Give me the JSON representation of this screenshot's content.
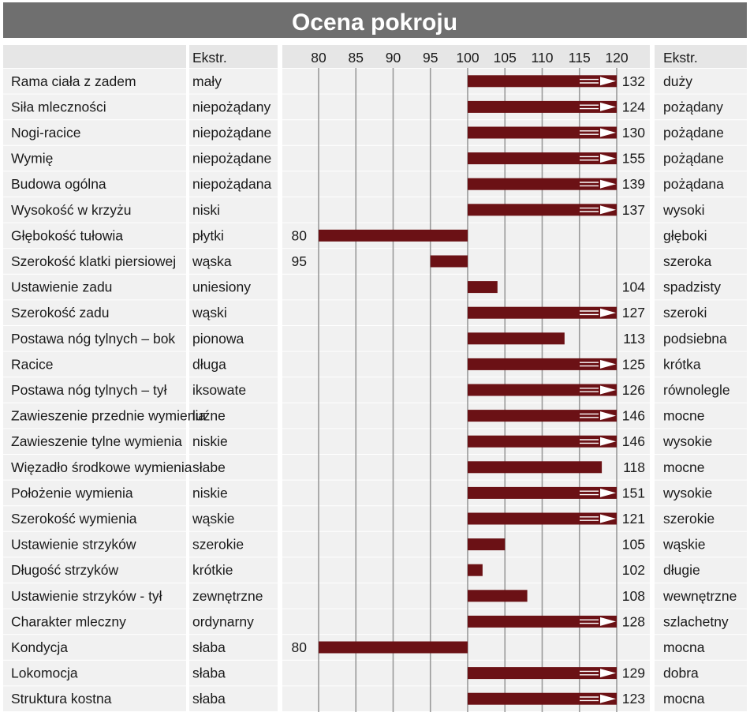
{
  "title": "Ocena pokroju",
  "header": {
    "left_extreme": "Ekstr.",
    "right_extreme": "Ekstr."
  },
  "colors": {
    "title_bg": "#6f6f6f",
    "bar": "#6b1115",
    "grid": "#9a9a9a",
    "cell_bg": "#f1f1f1",
    "header_bg": "#e6e6e6"
  },
  "chart_data": {
    "type": "bar",
    "orientation": "horizontal",
    "baseline": 100,
    "xlim": [
      80,
      120
    ],
    "ticks": [
      80,
      85,
      90,
      95,
      100,
      105,
      110,
      115,
      120
    ],
    "rows": [
      {
        "trait": "Rama ciała z zadem",
        "low": "mały",
        "high": "duży",
        "value": 132,
        "label": "132"
      },
      {
        "trait": "Siła mleczności",
        "low": "niepożądany",
        "high": "pożądany",
        "value": 124,
        "label": "124"
      },
      {
        "trait": "Nogi-racice",
        "low": "niepożądane",
        "high": "pożądane",
        "value": 130,
        "label": "130"
      },
      {
        "trait": "Wymię",
        "low": "niepożądane",
        "high": "pożądane",
        "value": 155,
        "label": "155"
      },
      {
        "trait": "Budowa ogólna",
        "low": "niepożądana",
        "high": "pożądana",
        "value": 139,
        "label": "139"
      },
      {
        "trait": "Wysokość w krzyżu",
        "low": "niski",
        "high": "wysoki",
        "value": 137,
        "label": "137"
      },
      {
        "trait": "Głębokość tułowia",
        "low": "płytki",
        "high": "głęboki",
        "value": 80,
        "label": "80"
      },
      {
        "trait": "Szerokość klatki piersiowej",
        "low": "wąska",
        "high": "szeroka",
        "value": 95,
        "label": "95"
      },
      {
        "trait": "Ustawienie zadu",
        "low": "uniesiony",
        "high": "spadzisty",
        "value": 104,
        "label": "104"
      },
      {
        "trait": "Szerokość zadu",
        "low": "wąski",
        "high": "szeroki",
        "value": 127,
        "label": "127"
      },
      {
        "trait": "Postawa nóg tylnych –  bok",
        "low": "pionowa",
        "high": "podsiebna",
        "value": 113,
        "label": "113"
      },
      {
        "trait": "Racice",
        "low": "długa",
        "high": "krótka",
        "value": 125,
        "label": "125"
      },
      {
        "trait": "Postawa nóg tylnych –  tył",
        "low": "iksowate",
        "high": "równolegle",
        "value": 126,
        "label": "126"
      },
      {
        "trait": "Zawieszenie przednie wymienia",
        "low": "luźne",
        "high": "mocne",
        "value": 146,
        "label": "146"
      },
      {
        "trait": "Zawieszenie tylne wymienia",
        "low": "niskie",
        "high": "wysokie",
        "value": 146,
        "label": "146"
      },
      {
        "trait": "Więzadło środkowe wymienia",
        "low": "słabe",
        "high": "mocne",
        "value": 118,
        "label": "118"
      },
      {
        "trait": "Położenie wymienia",
        "low": "niskie",
        "high": "wysokie",
        "value": 151,
        "label": "151"
      },
      {
        "trait": "Szerokość wymienia",
        "low": "wąskie",
        "high": "szerokie",
        "value": 121,
        "label": "121"
      },
      {
        "trait": "Ustawienie strzyków",
        "low": "szerokie",
        "high": "wąskie",
        "value": 105,
        "label": "105"
      },
      {
        "trait": "Długość strzyków",
        "low": "krótkie",
        "high": "długie",
        "value": 102,
        "label": "102"
      },
      {
        "trait": "Ustawienie strzyków - tył",
        "low": "zewnętrzne",
        "high": "wewnętrzne",
        "value": 108,
        "label": "108"
      },
      {
        "trait": "Charakter mleczny",
        "low": "ordynarny",
        "high": "szlachetny",
        "value": 128,
        "label": "128"
      },
      {
        "trait": "Kondycja",
        "low": "słaba",
        "high": "mocna",
        "value": 80,
        "label": "80"
      },
      {
        "trait": "Lokomocja",
        "low": "słaba",
        "high": "dobra",
        "value": 129,
        "label": "129"
      },
      {
        "trait": "Struktura kostna",
        "low": "słaba",
        "high": "mocna",
        "value": 123,
        "label": "123"
      }
    ]
  }
}
